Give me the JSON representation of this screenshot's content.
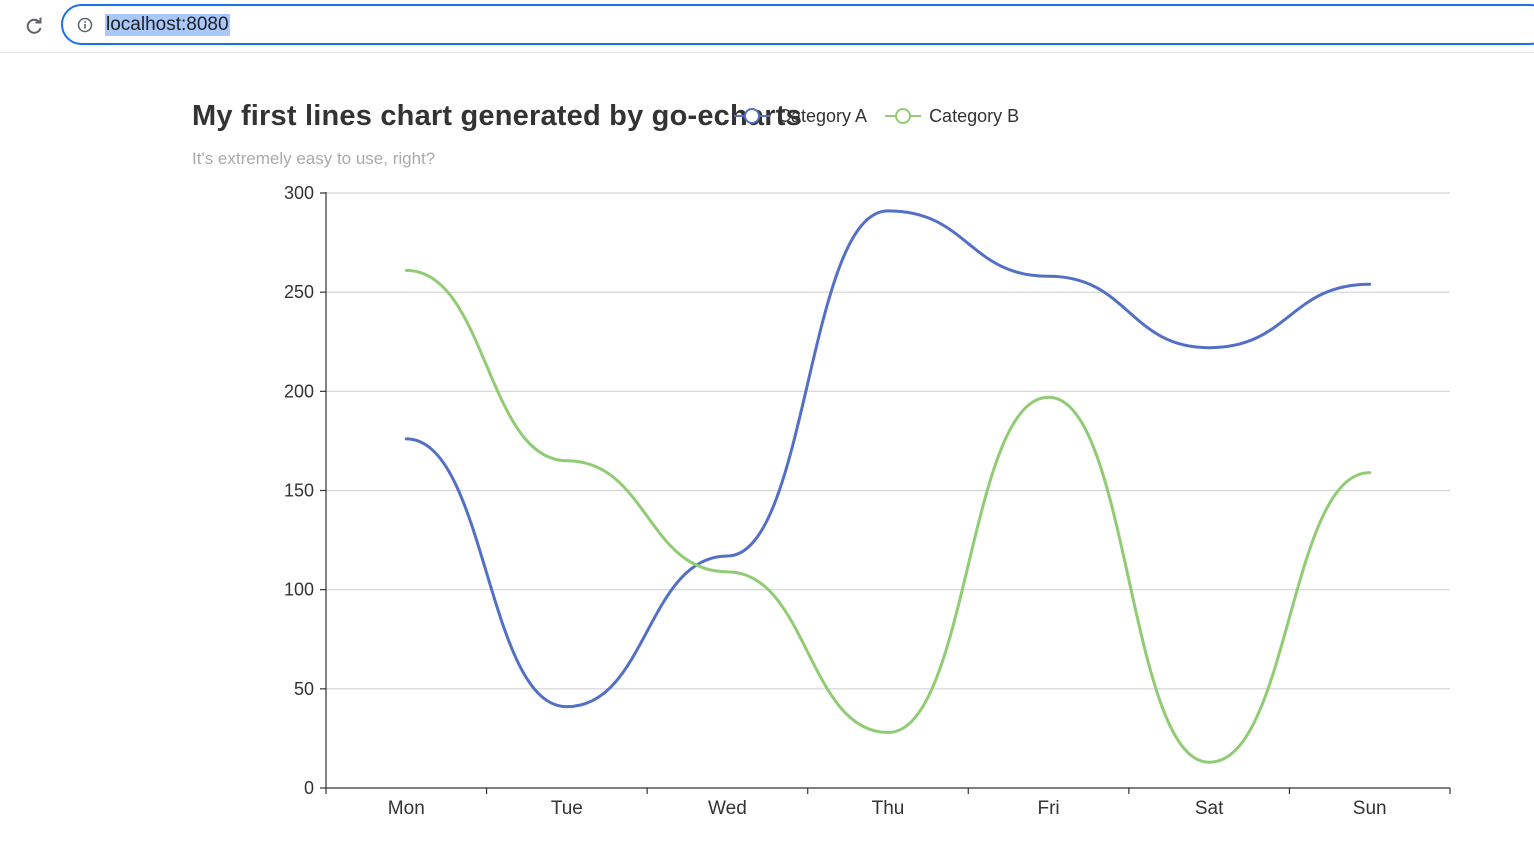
{
  "browser": {
    "url": "localhost:8080",
    "reload_icon": "reload-icon",
    "info_icon": "info-icon"
  },
  "chart_data": {
    "type": "line",
    "title": "My first lines chart generated by go-echarts",
    "subtitle": "It's extremely easy to use, right?",
    "categories": [
      "Mon",
      "Tue",
      "Wed",
      "Thu",
      "Fri",
      "Sat",
      "Sun"
    ],
    "series": [
      {
        "name": "Category A",
        "color": "#5470c6",
        "values": [
          176,
          41,
          117,
          291,
          258,
          222,
          254
        ]
      },
      {
        "name": "Category B",
        "color": "#91cc75",
        "values": [
          261,
          165,
          109,
          28,
          197,
          13,
          159
        ]
      }
    ],
    "ylim": [
      0,
      300
    ],
    "yticks": [
      0,
      50,
      100,
      150,
      200,
      250,
      300
    ],
    "smooth": true,
    "grid": true,
    "legend_position": "top-center"
  }
}
